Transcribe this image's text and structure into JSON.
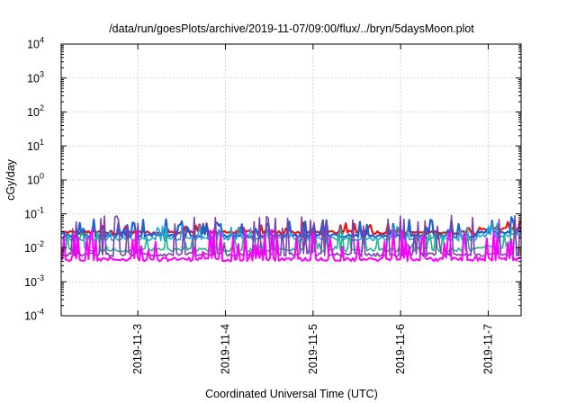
{
  "chart_data": {
    "type": "line",
    "title": "/data/run/goesPlots/archive/2019-11-07/09:00/flux/../bryn/5daysMoon.plot",
    "xlabel": "Coordinated Universal Time (UTC)",
    "ylabel": "cGy/day",
    "y_scale": "log",
    "ylim": [
      0.0001,
      10000
    ],
    "y_ticks": [
      {
        "value": 0.0001,
        "base": "10",
        "exp": "-4"
      },
      {
        "value": 0.001,
        "base": "10",
        "exp": "-3"
      },
      {
        "value": 0.01,
        "base": "10",
        "exp": "-2"
      },
      {
        "value": 0.1,
        "base": "10",
        "exp": "-1"
      },
      {
        "value": 1,
        "base": "10",
        "exp": "0"
      },
      {
        "value": 10,
        "base": "10",
        "exp": "1"
      },
      {
        "value": 100,
        "base": "10",
        "exp": "2"
      },
      {
        "value": 1000,
        "base": "10",
        "exp": "3"
      },
      {
        "value": 10000,
        "base": "10",
        "exp": "4"
      }
    ],
    "xlim": [
      "2019-11-02T03:00",
      "2019-11-07T09:00"
    ],
    "x_ticks": [
      {
        "value": "2019-11-03T00:00",
        "label": "2019-11-3"
      },
      {
        "value": "2019-11-04T00:00",
        "label": "2019-11-4"
      },
      {
        "value": "2019-11-05T00:00",
        "label": "2019-11-5"
      },
      {
        "value": "2019-11-06T00:00",
        "label": "2019-11-6"
      },
      {
        "value": "2019-11-07T00:00",
        "label": "2019-11-7"
      }
    ],
    "grid": true,
    "series": [
      {
        "color": "#e8160e",
        "baseline": 0.028,
        "spike": 0.055,
        "spike_rate": 0.25,
        "width": 2.2
      },
      {
        "color": "#1e5fd6",
        "baseline": 0.022,
        "spike": 0.07,
        "spike_rate": 0.35,
        "width": 2.2
      },
      {
        "color": "#1ea6d8",
        "baseline": 0.018,
        "spike": 0.045,
        "spike_rate": 0.3,
        "width": 1.6
      },
      {
        "color": "#22b58a",
        "baseline": 0.0085,
        "spike": 0.03,
        "spike_rate": 0.35,
        "width": 1.6
      },
      {
        "color": "#7b3fb0",
        "baseline": 0.0062,
        "spike": 0.09,
        "spike_rate": 0.4,
        "width": 1.6
      },
      {
        "color": "#ff00ff",
        "baseline": 0.0045,
        "spike": 0.035,
        "spike_rate": 0.5,
        "width": 2.0
      }
    ]
  }
}
